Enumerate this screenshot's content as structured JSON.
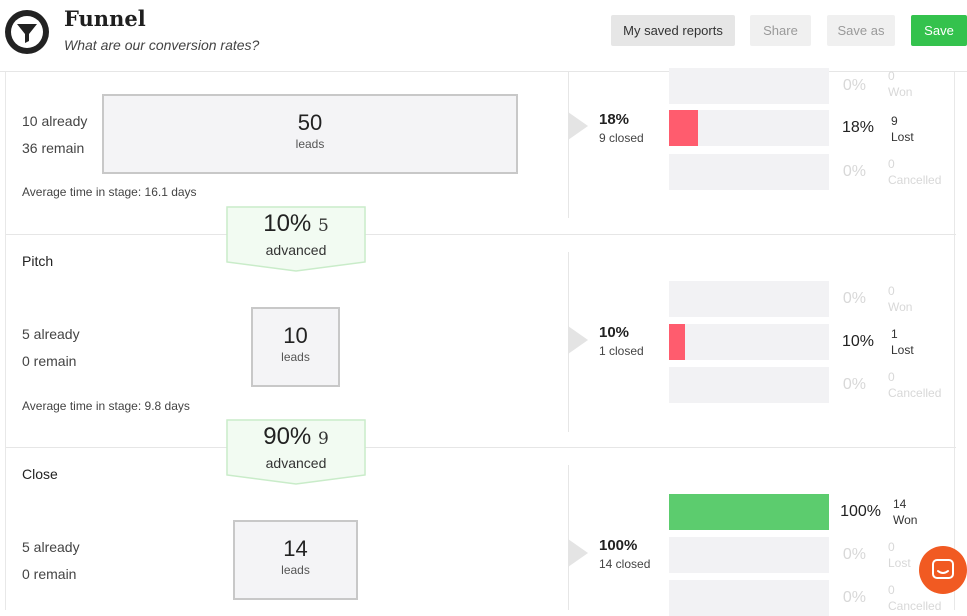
{
  "header": {
    "title": "Funnel",
    "subtitle": "What are our conversion rates?",
    "buttons": {
      "reports": "My saved reports",
      "share": "Share",
      "save_as": "Save as",
      "save": "Save"
    }
  },
  "colors": {
    "lost": "#ff5c6e",
    "won": "#5ccc6e",
    "save": "#34c24d",
    "chat": "#f15a22"
  },
  "stages": [
    {
      "name": "",
      "already": "10 already",
      "remain": "36 remain",
      "leads": "50",
      "leads_label": "leads",
      "avg_time": "Average time in stage: 16.1 days",
      "closed_pct": "18%",
      "closed_label": "9 closed",
      "bars": [
        {
          "pct": "0%",
          "count": "0",
          "label": "Won",
          "fraction": 0
        },
        {
          "pct": "18%",
          "count": "9",
          "label": "Lost",
          "fraction": 0.18
        },
        {
          "pct": "0%",
          "count": "0",
          "label": "Cancelled",
          "fraction": 0
        }
      ]
    },
    {
      "name": "Pitch",
      "already": "5 already",
      "remain": "0 remain",
      "leads": "10",
      "leads_label": "leads",
      "avg_time": "Average time in stage: 9.8 days",
      "closed_pct": "10%",
      "closed_label": "1 closed",
      "bars": [
        {
          "pct": "0%",
          "count": "0",
          "label": "Won",
          "fraction": 0
        },
        {
          "pct": "10%",
          "count": "1",
          "label": "Lost",
          "fraction": 0.1
        },
        {
          "pct": "0%",
          "count": "0",
          "label": "Cancelled",
          "fraction": 0
        }
      ]
    },
    {
      "name": "Close",
      "already": "5 already",
      "remain": "0 remain",
      "leads": "14",
      "leads_label": "leads",
      "closed_pct": "100%",
      "closed_label": "14 closed",
      "bars": [
        {
          "pct": "100%",
          "count": "14",
          "label": "Won",
          "fraction": 1.0
        },
        {
          "pct": "0%",
          "count": "0",
          "label": "Lost",
          "fraction": 0
        },
        {
          "pct": "0%",
          "count": "0",
          "label": "Cancelled",
          "fraction": 0
        }
      ]
    }
  ],
  "advances": [
    {
      "pct": "10%",
      "count": "5",
      "label": "advanced"
    },
    {
      "pct": "90%",
      "count": "9",
      "label": "advanced"
    }
  ],
  "chat_icon": "chat-bubble-icon",
  "logo_icon": "funnel-icon"
}
